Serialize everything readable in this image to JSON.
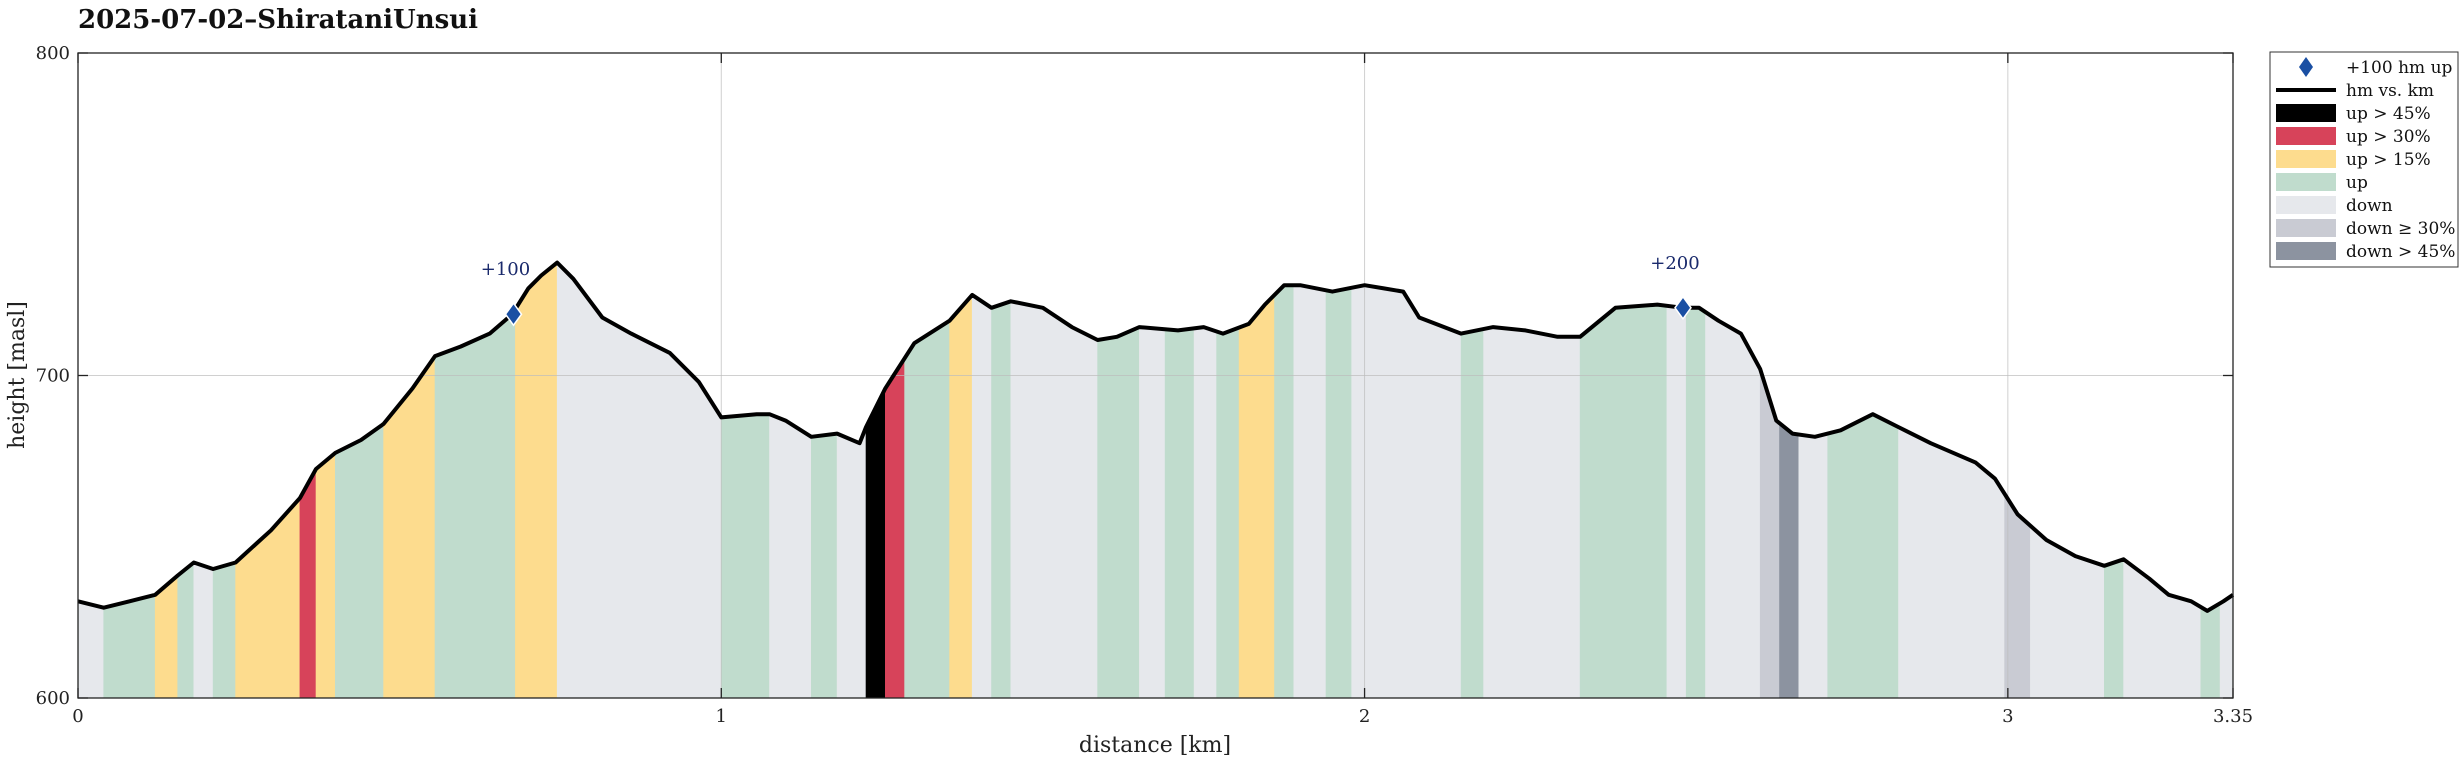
{
  "chart_data": {
    "type": "area",
    "title": "2025-07-02–ShirataniUnsui",
    "xlabel": "distance [km]",
    "ylabel": "height [masl]",
    "xlim": [
      0,
      3.35
    ],
    "ylim": [
      600,
      800
    ],
    "xticks": [
      0,
      1,
      2,
      3,
      3.35
    ],
    "xtick_labels": [
      "0",
      "1",
      "2",
      "3",
      "3.35"
    ],
    "yticks": [
      600,
      700,
      800
    ],
    "ytick_labels": [
      "600",
      "700",
      "800"
    ],
    "grid": true,
    "legend_position": "outside-top-right",
    "colors": {
      "up45": "#000000",
      "up30": "#d7435a",
      "up15": "#fddc8e",
      "up": "#c0dccd",
      "down": "#e6e8ec",
      "down30": "#c9cbd3",
      "down45": "#8c93a0",
      "line": "#000000",
      "marker": "#1a4fa3"
    },
    "profile": {
      "x": [
        0,
        0.04,
        0.08,
        0.12,
        0.155,
        0.18,
        0.21,
        0.245,
        0.3,
        0.345,
        0.37,
        0.4,
        0.44,
        0.475,
        0.52,
        0.555,
        0.595,
        0.64,
        0.675,
        0.7,
        0.72,
        0.745,
        0.77,
        0.815,
        0.86,
        0.92,
        0.965,
        1.0,
        1.055,
        1.075,
        1.1,
        1.14,
        1.18,
        1.215,
        1.225,
        1.255,
        1.3,
        1.355,
        1.39,
        1.42,
        1.45,
        1.5,
        1.545,
        1.585,
        1.615,
        1.65,
        1.71,
        1.75,
        1.78,
        1.82,
        1.845,
        1.875,
        1.9,
        1.95,
        2.0,
        2.03,
        2.06,
        2.085,
        2.15,
        2.2,
        2.25,
        2.3,
        2.335,
        2.39,
        2.455,
        2.495,
        2.52,
        2.55,
        2.585,
        2.615,
        2.64,
        2.665,
        2.7,
        2.74,
        2.79,
        2.83,
        2.88,
        2.95,
        2.98,
        3.015,
        3.06,
        3.105,
        3.15,
        3.18,
        3.22,
        3.25,
        3.285,
        3.31,
        3.335,
        3.35
      ],
      "y": [
        630,
        628,
        630,
        632,
        638,
        642,
        640,
        642,
        652,
        662,
        671,
        676,
        680,
        685,
        696,
        706,
        709,
        713,
        719,
        727,
        731,
        735,
        730,
        718,
        713,
        707,
        698,
        687,
        688,
        688,
        686,
        681,
        682,
        679,
        684,
        696,
        710,
        717,
        725,
        721,
        723,
        721,
        715,
        711,
        712,
        715,
        714,
        715,
        713,
        716,
        722,
        728,
        728,
        726,
        728,
        727,
        726,
        718,
        713,
        715,
        714,
        712,
        712,
        721,
        722,
        721,
        721,
        717,
        713,
        702,
        686,
        682,
        681,
        683,
        688,
        684,
        679,
        673,
        668,
        657,
        649,
        644,
        641,
        643,
        637,
        632,
        630,
        627,
        630,
        632
      ]
    },
    "bands": [
      {
        "x0": 0.0,
        "x1": 0.04,
        "cls": "down"
      },
      {
        "x0": 0.04,
        "x1": 0.12,
        "cls": "up"
      },
      {
        "x0": 0.12,
        "x1": 0.155,
        "cls": "up15"
      },
      {
        "x0": 0.155,
        "x1": 0.18,
        "cls": "up"
      },
      {
        "x0": 0.18,
        "x1": 0.21,
        "cls": "down"
      },
      {
        "x0": 0.21,
        "x1": 0.245,
        "cls": "up"
      },
      {
        "x0": 0.245,
        "x1": 0.345,
        "cls": "up15"
      },
      {
        "x0": 0.345,
        "x1": 0.37,
        "cls": "up30"
      },
      {
        "x0": 0.37,
        "x1": 0.4,
        "cls": "up15"
      },
      {
        "x0": 0.4,
        "x1": 0.475,
        "cls": "up"
      },
      {
        "x0": 0.475,
        "x1": 0.555,
        "cls": "up15"
      },
      {
        "x0": 0.555,
        "x1": 0.68,
        "cls": "up"
      },
      {
        "x0": 0.68,
        "x1": 0.745,
        "cls": "up15"
      },
      {
        "x0": 0.745,
        "x1": 1.0,
        "cls": "down"
      },
      {
        "x0": 1.0,
        "x1": 1.075,
        "cls": "up"
      },
      {
        "x0": 1.075,
        "x1": 1.14,
        "cls": "down"
      },
      {
        "x0": 1.14,
        "x1": 1.18,
        "cls": "up"
      },
      {
        "x0": 1.18,
        "x1": 1.225,
        "cls": "down"
      },
      {
        "x0": 1.225,
        "x1": 1.255,
        "cls": "up45"
      },
      {
        "x0": 1.255,
        "x1": 1.285,
        "cls": "up30"
      },
      {
        "x0": 1.285,
        "x1": 1.355,
        "cls": "up"
      },
      {
        "x0": 1.355,
        "x1": 1.39,
        "cls": "up15"
      },
      {
        "x0": 1.39,
        "x1": 1.42,
        "cls": "down"
      },
      {
        "x0": 1.42,
        "x1": 1.45,
        "cls": "up"
      },
      {
        "x0": 1.45,
        "x1": 1.585,
        "cls": "down"
      },
      {
        "x0": 1.585,
        "x1": 1.65,
        "cls": "up"
      },
      {
        "x0": 1.65,
        "x1": 1.69,
        "cls": "down"
      },
      {
        "x0": 1.69,
        "x1": 1.735,
        "cls": "up"
      },
      {
        "x0": 1.735,
        "x1": 1.77,
        "cls": "down"
      },
      {
        "x0": 1.77,
        "x1": 1.805,
        "cls": "up"
      },
      {
        "x0": 1.805,
        "x1": 1.86,
        "cls": "up15"
      },
      {
        "x0": 1.86,
        "x1": 1.89,
        "cls": "up"
      },
      {
        "x0": 1.89,
        "x1": 1.94,
        "cls": "down"
      },
      {
        "x0": 1.94,
        "x1": 1.98,
        "cls": "up"
      },
      {
        "x0": 1.98,
        "x1": 2.15,
        "cls": "down"
      },
      {
        "x0": 2.15,
        "x1": 2.185,
        "cls": "up"
      },
      {
        "x0": 2.185,
        "x1": 2.335,
        "cls": "down"
      },
      {
        "x0": 2.335,
        "x1": 2.47,
        "cls": "up"
      },
      {
        "x0": 2.47,
        "x1": 2.5,
        "cls": "down"
      },
      {
        "x0": 2.5,
        "x1": 2.53,
        "cls": "up"
      },
      {
        "x0": 2.53,
        "x1": 2.615,
        "cls": "down"
      },
      {
        "x0": 2.615,
        "x1": 2.645,
        "cls": "down30"
      },
      {
        "x0": 2.645,
        "x1": 2.675,
        "cls": "down45"
      },
      {
        "x0": 2.675,
        "x1": 2.72,
        "cls": "down"
      },
      {
        "x0": 2.72,
        "x1": 2.83,
        "cls": "up"
      },
      {
        "x0": 2.83,
        "x1": 2.995,
        "cls": "down"
      },
      {
        "x0": 2.995,
        "x1": 3.035,
        "cls": "down30"
      },
      {
        "x0": 3.035,
        "x1": 3.15,
        "cls": "down"
      },
      {
        "x0": 3.15,
        "x1": 3.18,
        "cls": "up"
      },
      {
        "x0": 3.18,
        "x1": 3.3,
        "cls": "down"
      },
      {
        "x0": 3.3,
        "x1": 3.33,
        "cls": "up"
      },
      {
        "x0": 3.33,
        "x1": 3.35,
        "cls": "down"
      }
    ],
    "markers": [
      {
        "x": 0.677,
        "y": 719,
        "label": "+100"
      },
      {
        "x": 2.495,
        "y": 721,
        "label": "+200"
      }
    ],
    "legend": [
      {
        "kind": "marker",
        "label": "+100 hm up"
      },
      {
        "kind": "line",
        "label": "hm vs. km"
      },
      {
        "kind": "patch",
        "cls": "up45",
        "label": "up > 45%"
      },
      {
        "kind": "patch",
        "cls": "up30",
        "label": "up > 30%"
      },
      {
        "kind": "patch",
        "cls": "up15",
        "label": "up > 15%"
      },
      {
        "kind": "patch",
        "cls": "up",
        "label": "up"
      },
      {
        "kind": "patch",
        "cls": "down",
        "label": "down"
      },
      {
        "kind": "patch",
        "cls": "down30",
        "label": "down ≥ 30%"
      },
      {
        "kind": "patch",
        "cls": "down45",
        "label": "down > 45%"
      }
    ]
  }
}
